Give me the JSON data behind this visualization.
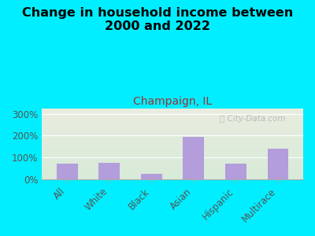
{
  "title": "Change in household income between\n2000 and 2022",
  "subtitle": "Champaign, IL",
  "categories": [
    "All",
    "White",
    "Black",
    "Asian",
    "Hispanic",
    "Multirace"
  ],
  "values": [
    70,
    75,
    25,
    195,
    70,
    140
  ],
  "bar_color": "#b39ddb",
  "background_color": "#00eeff",
  "plot_bg_top": "#e8ede0",
  "plot_bg_bottom": "#d8ead8",
  "title_fontsize": 11.5,
  "subtitle_fontsize": 10,
  "tick_fontsize": 8.5,
  "ytick_labels": [
    "0%",
    "100%",
    "200%",
    "300%"
  ],
  "ytick_values": [
    0,
    100,
    200,
    300
  ],
  "ylim": [
    0,
    325
  ],
  "watermark": "ⓘ City-Data.com",
  "watermark_color": "#bbbbbb",
  "title_color": "#000000",
  "subtitle_color": "#993333",
  "axis_label_color": "#555555"
}
